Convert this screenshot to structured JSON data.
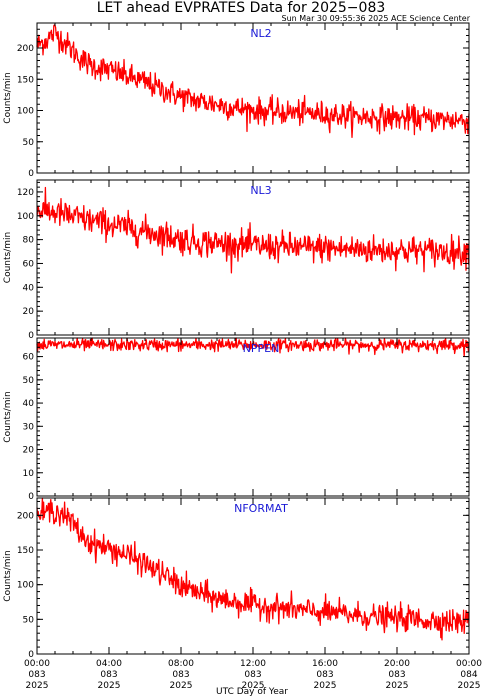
{
  "chart_title": "LET ahead EVPRATES Data for 2025−083",
  "timestamp": "Sun Mar 30 09:55:36 2025 ACE Science Center",
  "xlabel": "UTC Day of Year",
  "x_ticks": [
    {
      "time": "00:00",
      "doy": "083",
      "year": "2025"
    },
    {
      "time": "04:00",
      "doy": "083",
      "year": "2025"
    },
    {
      "time": "08:00",
      "doy": "083",
      "year": "2025"
    },
    {
      "time": "12:00",
      "doy": "083",
      "year": "2025"
    },
    {
      "time": "16:00",
      "doy": "083",
      "year": "2025"
    },
    {
      "time": "20:00",
      "doy": "083",
      "year": "2025"
    },
    {
      "time": "00:00",
      "doy": "084",
      "year": "2025"
    }
  ],
  "colors": {
    "series": "#ff0000",
    "label": "#1a1ad6",
    "axis": "#000000"
  },
  "chart_data": [
    {
      "type": "line",
      "title": "NL2",
      "ylabel": "Counts/min",
      "xlim": [
        0,
        24
      ],
      "ylim": [
        0,
        240
      ],
      "yticks": [
        0,
        50,
        100,
        150,
        200
      ],
      "series": [
        {
          "x": [
            0,
            0.5,
            1,
            1.5,
            2,
            2.5,
            3,
            4,
            5,
            6,
            7,
            8,
            9,
            10,
            11,
            12,
            13,
            14,
            15,
            16,
            17,
            18,
            19,
            20,
            21,
            22,
            23,
            24
          ],
          "y": [
            205,
            212,
            225,
            210,
            195,
            182,
            172,
            165,
            155,
            145,
            133,
            122,
            115,
            110,
            104,
            100,
            98,
            97,
            96,
            94,
            92,
            90,
            89,
            88,
            87,
            86,
            85,
            84
          ],
          "noise": 10
        }
      ]
    },
    {
      "type": "line",
      "title": "NL3",
      "ylabel": "Counts/min",
      "xlim": [
        0,
        24
      ],
      "ylim": [
        0,
        130
      ],
      "yticks": [
        0,
        20,
        40,
        60,
        80,
        100,
        120
      ],
      "series": [
        {
          "x": [
            0,
            0.5,
            1,
            1.5,
            2,
            3,
            4,
            5,
            6,
            7,
            8,
            9,
            10,
            11,
            12,
            13,
            14,
            15,
            16,
            17,
            18,
            19,
            20,
            21,
            22,
            23,
            24
          ],
          "y": [
            105,
            104,
            103,
            101,
            99,
            96,
            93,
            90,
            87,
            84,
            80,
            78,
            77,
            76,
            75,
            74,
            74,
            73,
            73,
            72,
            72,
            71,
            71,
            71,
            70,
            70,
            70
          ],
          "noise": 6
        }
      ]
    },
    {
      "type": "line",
      "title": "NPPEN",
      "ylabel": "Counts/min",
      "xlim": [
        0,
        24
      ],
      "ylim": [
        0,
        68
      ],
      "yticks": [
        0,
        10,
        20,
        30,
        40,
        50,
        60
      ],
      "series": [
        {
          "x": [
            0,
            24
          ],
          "y": [
            65,
            65
          ],
          "noise": 1.3
        }
      ]
    },
    {
      "type": "line",
      "title": "NFORMAT",
      "ylabel": "Counts/min",
      "xlim": [
        0,
        24
      ],
      "ylim": [
        0,
        225
      ],
      "yticks": [
        0,
        50,
        100,
        150,
        200
      ],
      "series": [
        {
          "x": [
            0,
            0.5,
            1,
            1.5,
            2,
            2.5,
            3,
            4,
            5,
            6,
            7,
            8,
            9,
            10,
            11,
            12,
            13,
            14,
            15,
            16,
            17,
            18,
            19,
            20,
            21,
            22,
            23,
            24
          ],
          "y": [
            200,
            205,
            208,
            200,
            188,
            170,
            160,
            152,
            143,
            130,
            115,
            98,
            88,
            80,
            75,
            71,
            68,
            65,
            62,
            60,
            58,
            55,
            53,
            52,
            50,
            48,
            47,
            46
          ],
          "noise": 9
        }
      ]
    }
  ]
}
